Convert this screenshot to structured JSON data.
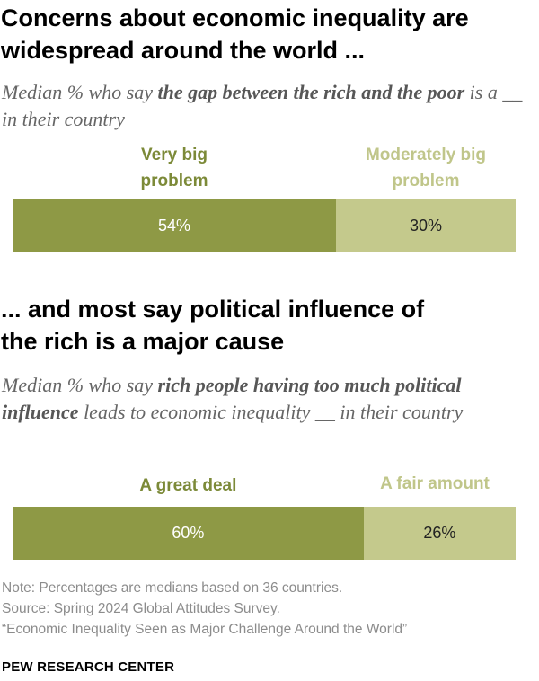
{
  "colors": {
    "very_big": "#8e9945",
    "moderately_big": "#c4c98c",
    "very_big_text": "#7c8a38",
    "moderately_big_text": "#c0c68a"
  },
  "chart_data": [
    {
      "type": "bar",
      "orientation": "horizontal-stacked",
      "title_lines": [
        "Concerns about economic inequality are",
        "widespread around the world ..."
      ],
      "subtitle_parts": [
        {
          "text": "Median % who say ",
          "bold": false
        },
        {
          "text": "the gap between the rich and the poor",
          "bold": true
        },
        {
          "text": " is a __ in their country",
          "bold": false
        }
      ],
      "series": [
        {
          "name_lines": [
            "Very big",
            "problem"
          ],
          "value": 54,
          "label": "54%"
        },
        {
          "name_lines": [
            "Moderately big",
            "problem"
          ],
          "value": 30,
          "label": "30%"
        }
      ],
      "xlim": [
        0,
        100
      ]
    },
    {
      "type": "bar",
      "orientation": "horizontal-stacked",
      "title_lines": [
        "... and most say political influence of",
        "the rich is a major cause"
      ],
      "subtitle_parts": [
        {
          "text": "Median % who say ",
          "bold": false
        },
        {
          "text": "rich people having too much political influence",
          "bold": true
        },
        {
          "text": " leads to economic inequality __ in their country",
          "bold": false
        }
      ],
      "series": [
        {
          "name_lines": [
            "A great deal"
          ],
          "value": 60,
          "label": "60%"
        },
        {
          "name_lines": [
            "A fair amount"
          ],
          "value": 26,
          "label": "26%"
        }
      ],
      "xlim": [
        0,
        100
      ]
    }
  ],
  "footer": {
    "note": "Note: Percentages are medians based on 36 countries.",
    "source": "Source: Spring 2024 Global Attitudes Survey.",
    "report": "“Economic Inequality Seen as Major Challenge Around the World”",
    "org": "PEW RESEARCH CENTER"
  }
}
